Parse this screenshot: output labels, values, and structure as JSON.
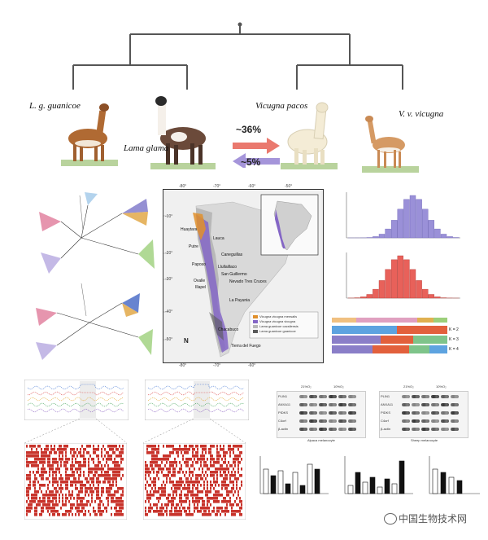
{
  "species": {
    "guanicoe": "L. g. guanicoe",
    "glama": "Lama glama",
    "pacos": "Vicugna pacos",
    "vicugna": "V. v. vicugna"
  },
  "introgression": {
    "top": "~36%",
    "bottom": "~5%"
  },
  "map": {
    "lon_ticks": [
      "-80°",
      "-70°",
      "-60°",
      "-50°"
    ],
    "lat_ticks": [
      "-10°",
      "-20°",
      "-30°",
      "-40°",
      "-50°"
    ],
    "places": [
      "Huaytara",
      "Lauca",
      "Putre",
      "Caneguillas",
      "Paposo",
      "Llullaillaco",
      "San Guillermo",
      "Nevado Tres Cruces",
      "Ovalle",
      "Illapel",
      "La Payunia",
      "Chacabuco",
      "Tierra del Fuego"
    ],
    "legend": [
      "Vicugna vicugna mensalis",
      "Vicugna vicugna vicugna",
      "Lama guanicoe cacsilensis",
      "Lama guanicoe guanicoe"
    ],
    "north": "N"
  },
  "structure_k": [
    "K = 2",
    "K = 3",
    "K = 4"
  ],
  "blots": {
    "left_headers": [
      "21%O₂",
      "10%O₂"
    ],
    "right_headers": [
      "21%O₂",
      "10%O₂"
    ],
    "rows": [
      "PLIN1",
      "ANXA11",
      "PIDKS",
      "C4orf",
      "β-actin"
    ],
    "left_caption": "Alpaca melanocyte",
    "right_caption": "Sheep melanocyte"
  },
  "watermark": "中国生物技术网",
  "colors": {
    "arrow_red": "#e86a5e",
    "arrow_purple": "#9b8ad6",
    "hist_purple": "#9a90d8",
    "hist_red": "#e8615a",
    "map_purple": "#8466c6",
    "map_orange": "#e0902c",
    "heat_red": "#c8342c"
  }
}
